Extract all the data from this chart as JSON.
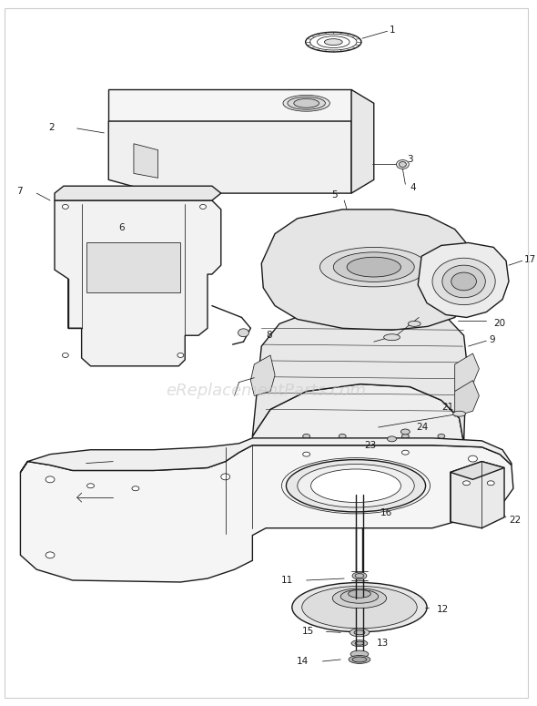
{
  "background_color": "#ffffff",
  "line_color": "#1a1a1a",
  "watermark_text": "eReplacementParts.com",
  "watermark_color": "#c8c8c8",
  "watermark_fontsize": 13,
  "fig_width": 5.9,
  "fig_height": 7.75,
  "dpi": 100,
  "lw_main": 1.0,
  "lw_thin": 0.55,
  "lw_med": 0.75
}
